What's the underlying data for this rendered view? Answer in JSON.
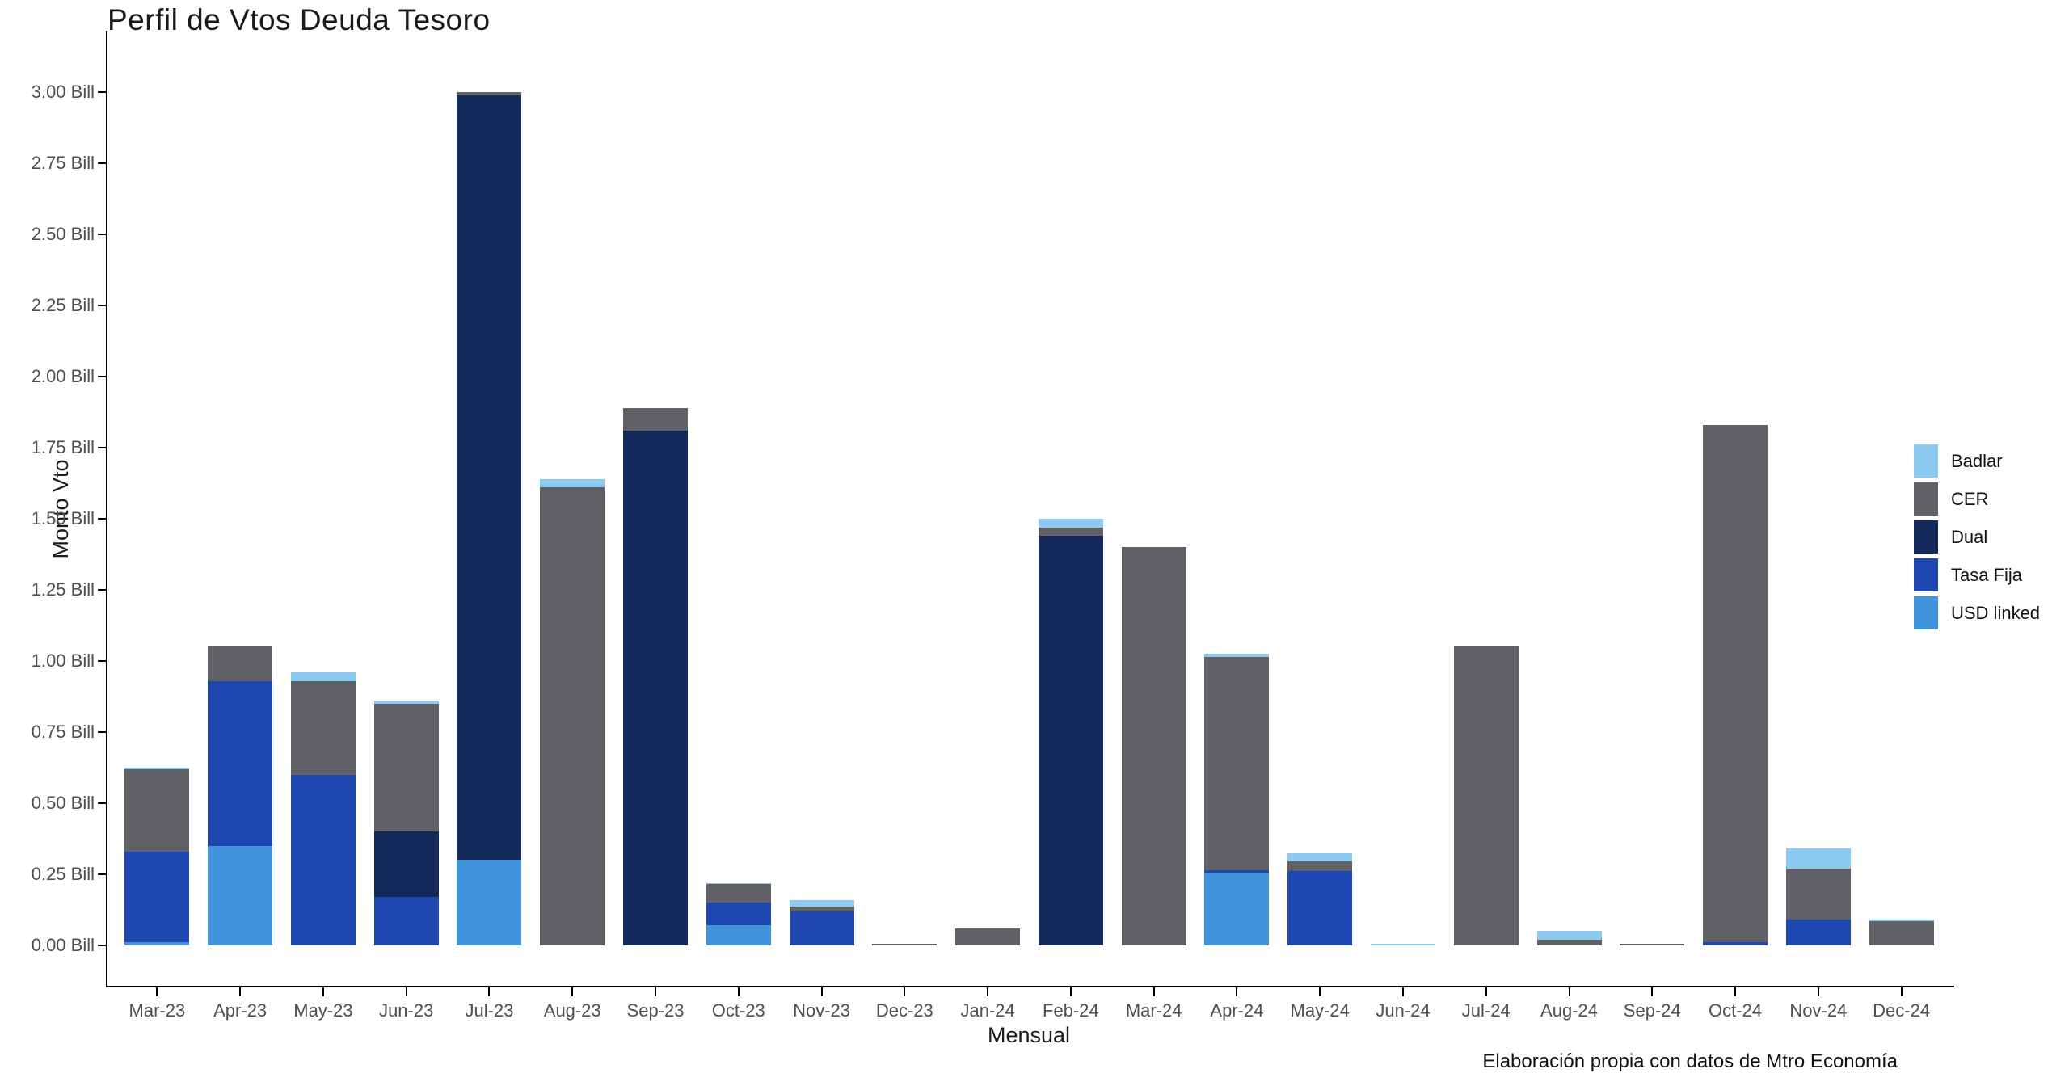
{
  "title": "Perfil de Vtos Deuda Tesoro",
  "caption": "Elaboración propia con datos de Mtro Economía",
  "chart_data": {
    "type": "bar",
    "stacked": true,
    "title": "Perfil de Vtos Deuda Tesoro",
    "xlabel": "Mensual",
    "ylabel": "Monto Vto",
    "ylim": [
      0,
      3.0
    ],
    "ytick_step": 0.25,
    "ytick_labels": [
      "0.00 Bill",
      "0.25 Bill",
      "0.50 Bill",
      "0.75 Bill",
      "1.00 Bill",
      "1.25 Bill",
      "1.50 Bill",
      "1.75 Bill",
      "2.00 Bill",
      "2.25 Bill",
      "2.50 Bill",
      "2.75 Bill",
      "3.00 Bill"
    ],
    "grid": false,
    "legend_position": "right",
    "units": "Bill",
    "categories": [
      "Mar-23",
      "Apr-23",
      "May-23",
      "Jun-23",
      "Jul-23",
      "Aug-23",
      "Sep-23",
      "Oct-23",
      "Nov-23",
      "Dec-23",
      "Jan-24",
      "Feb-24",
      "Mar-24",
      "Apr-24",
      "May-24",
      "Jun-24",
      "Jul-24",
      "Aug-24",
      "Sep-24",
      "Oct-24",
      "Nov-24",
      "Dec-24"
    ],
    "stack_order_bottom_to_top": [
      "USD linked",
      "Tasa Fija",
      "Dual",
      "CER",
      "Badlar"
    ],
    "series": [
      {
        "name": "Badlar",
        "color": "#8CCAF2",
        "values": [
          0.005,
          0,
          0.03,
          0.01,
          0,
          0.03,
          0,
          0.005,
          0.025,
          0,
          0,
          0.03,
          0,
          0.01,
          0.03,
          0.005,
          0,
          0.03,
          0,
          0,
          0.07,
          0.005
        ]
      },
      {
        "name": "CER",
        "color": "#606166",
        "values": [
          0.29,
          0.12,
          0.33,
          0.45,
          0.01,
          1.61,
          0.08,
          0.065,
          0.015,
          0.005,
          0.06,
          0.03,
          1.4,
          0.75,
          0.035,
          0,
          1.05,
          0.02,
          0.005,
          1.82,
          0.18,
          0.085
        ]
      },
      {
        "name": "Dual",
        "color": "#12295A",
        "values": [
          0,
          0,
          0,
          0.23,
          2.69,
          0,
          1.81,
          0,
          0,
          0,
          0,
          1.44,
          0,
          0,
          0,
          0,
          0,
          0,
          0,
          0,
          0,
          0
        ]
      },
      {
        "name": "Tasa Fija",
        "color": "#1E47B2",
        "values": [
          0.32,
          0.58,
          0.6,
          0.17,
          0,
          0,
          0,
          0.08,
          0.12,
          0,
          0,
          0,
          0,
          0.01,
          0.26,
          0,
          0,
          0,
          0,
          0.01,
          0.09,
          0
        ]
      },
      {
        "name": "USD linked",
        "color": "#4094DC",
        "values": [
          0.01,
          0.35,
          0,
          0,
          0.3,
          0,
          0,
          0.07,
          0,
          0,
          0,
          0,
          0,
          0.255,
          0,
          0,
          0,
          0,
          0,
          0,
          0,
          0
        ]
      }
    ],
    "bar_totals": [
      0.625,
      1.05,
      0.96,
      0.86,
      3.0,
      1.64,
      1.89,
      0.22,
      0.16,
      0.005,
      0.06,
      1.5,
      1.4,
      1.025,
      0.325,
      0.005,
      1.05,
      0.05,
      0.005,
      1.83,
      0.34,
      0.09
    ]
  }
}
